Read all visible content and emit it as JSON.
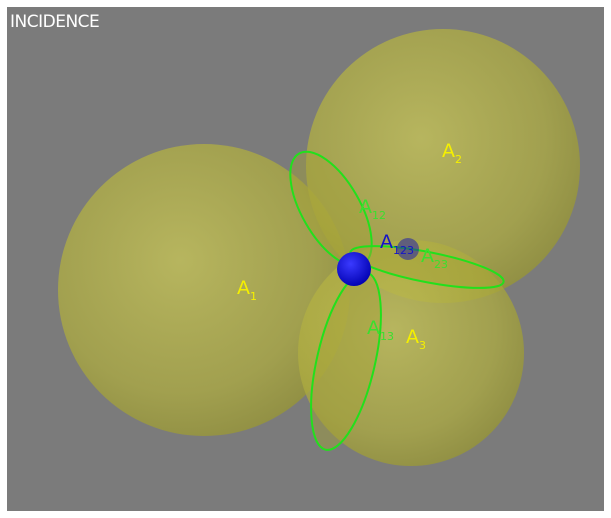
{
  "view": {
    "title": "INCIDENCE"
  },
  "colors": {
    "background": "#7b7b7b",
    "sphere_fill": "#b9b84a",
    "intersection_fill": "#a5a238",
    "intersection_outline": "#22e01c",
    "set_label": "#f5f000",
    "pair_label": "#3adf2e",
    "triple_label": "#1414c8",
    "point": "#0000ff"
  },
  "labels": {
    "a1": {
      "base": "A",
      "sub": "1"
    },
    "a2": {
      "base": "A",
      "sub": "2"
    },
    "a3": {
      "base": "A",
      "sub": "3"
    },
    "a12": {
      "base": "A",
      "sub": "12"
    },
    "a23": {
      "base": "A",
      "sub": "23"
    },
    "a13": {
      "base": "A",
      "sub": "13"
    },
    "a123": {
      "base": "A",
      "sub": "123"
    }
  }
}
